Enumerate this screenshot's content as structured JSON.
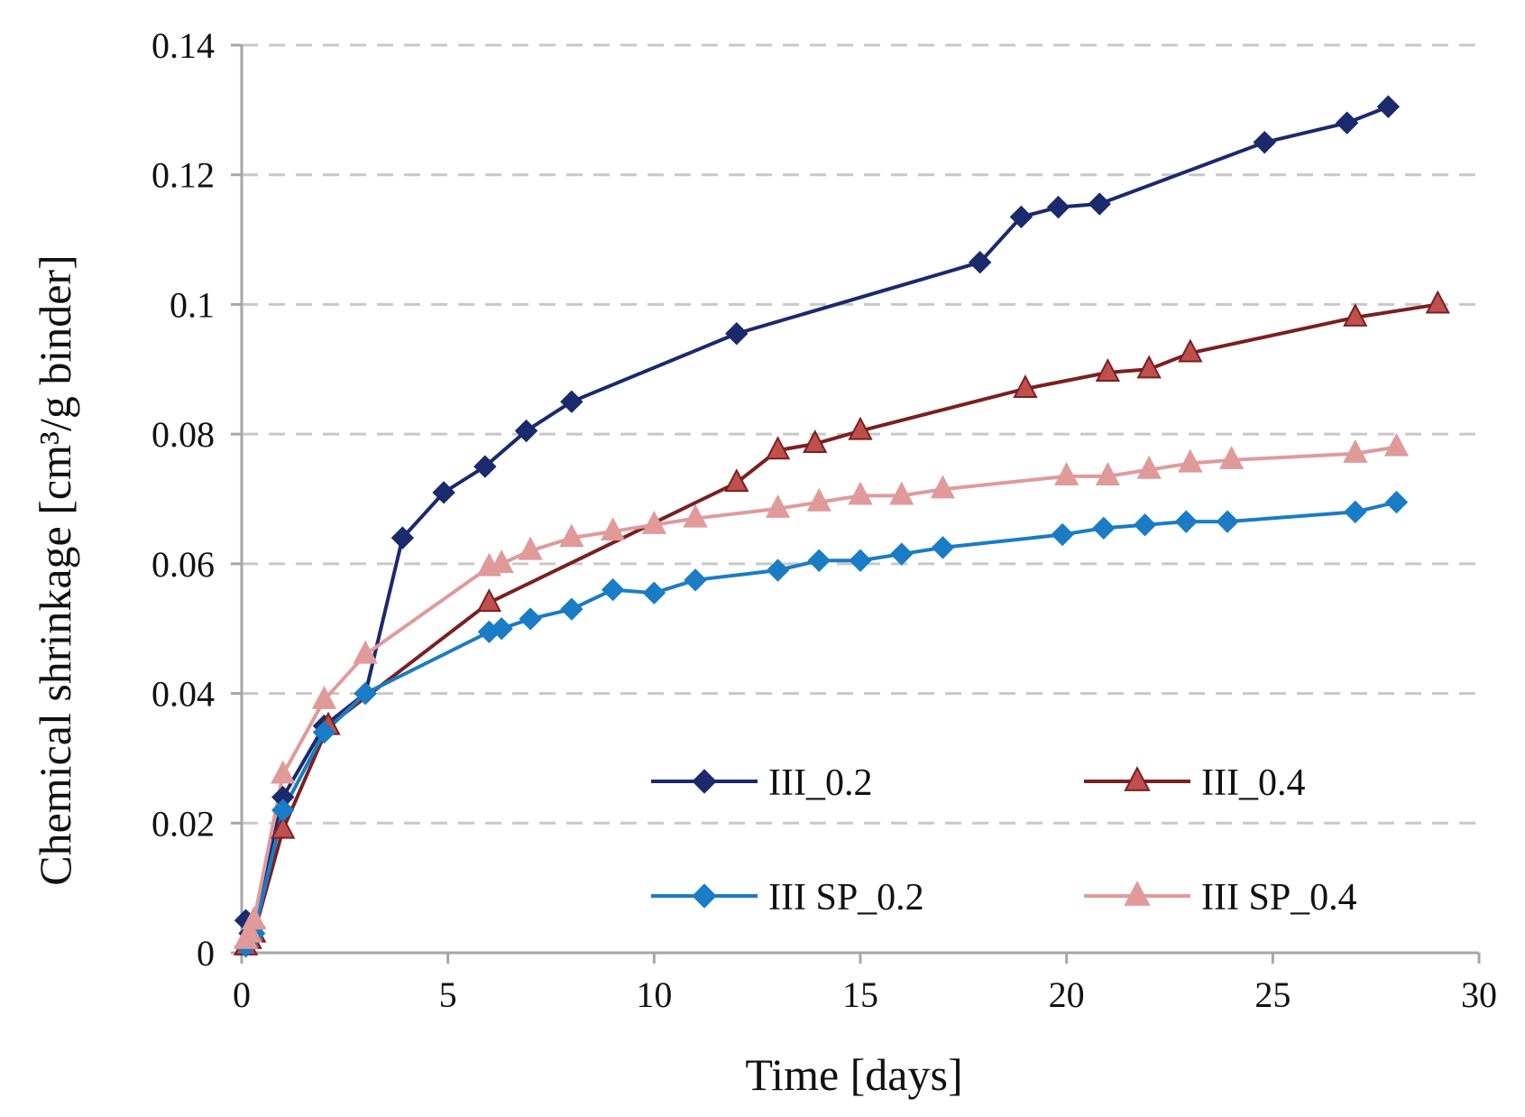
{
  "chart_data": {
    "type": "line",
    "title": "",
    "xlabel": "Time [days]",
    "ylabel": "Chemical shrinkage [cm³/g binder]",
    "xlim": [
      0,
      30
    ],
    "ylim": [
      0,
      0.14
    ],
    "x_ticks": [
      0,
      5,
      10,
      15,
      20,
      25,
      30
    ],
    "y_ticks": [
      0,
      0.02,
      0.04,
      0.06,
      0.08,
      0.1,
      0.12,
      0.14
    ],
    "x_tick_labels": [
      "0",
      "5",
      "10",
      "15",
      "20",
      "25",
      "30"
    ],
    "y_tick_labels": [
      "0",
      "0.02",
      "0.04",
      "0.06",
      "0.08",
      "0.1",
      "0.12",
      "0.14"
    ],
    "grid": "horizontal dashed",
    "legend": "inside bottom-right",
    "series": [
      {
        "name": "III_0.2",
        "color": "#1a2a6c",
        "marker": "diamond",
        "x": [
          0.1,
          0.2,
          0.3,
          1,
          2,
          3,
          3.9,
          4.9,
          5.9,
          6.9,
          8,
          12,
          17.9,
          18.9,
          19.8,
          20.8,
          24.8,
          26.8,
          27.8
        ],
        "y": [
          0.005,
          0.003,
          0.004,
          0.024,
          0.035,
          0.04,
          0.064,
          0.071,
          0.075,
          0.0805,
          0.085,
          0.0955,
          0.1065,
          0.1135,
          0.115,
          0.1155,
          0.125,
          0.128,
          0.1305
        ]
      },
      {
        "name": "III_0.4",
        "color": "#7a2020",
        "marker": "triangle",
        "x": [
          0.1,
          0.2,
          0.3,
          1,
          2.1,
          6,
          12,
          13,
          13.9,
          15,
          19,
          21,
          22,
          23,
          27,
          29
        ],
        "y": [
          0.001,
          0.002,
          0.003,
          0.019,
          0.035,
          0.054,
          0.0725,
          0.0775,
          0.0785,
          0.0805,
          0.087,
          0.0895,
          0.09,
          0.0925,
          0.098,
          0.1
        ]
      },
      {
        "name": "III SP_0.2",
        "color": "#1a7cc4",
        "marker": "diamond",
        "x": [
          0.1,
          0.2,
          0.3,
          1,
          2,
          3,
          6,
          6.3,
          7,
          8,
          9,
          10,
          11,
          13,
          14,
          15,
          16,
          17,
          19.9,
          20.9,
          21.9,
          22.9,
          23.9,
          27,
          28
        ],
        "y": [
          0.001,
          0.002,
          0.003,
          0.022,
          0.034,
          0.04,
          0.0495,
          0.05,
          0.0515,
          0.053,
          0.056,
          0.0555,
          0.0575,
          0.059,
          0.0605,
          0.0605,
          0.0615,
          0.0625,
          0.0645,
          0.0655,
          0.066,
          0.0665,
          0.0665,
          0.068,
          0.0695
        ]
      },
      {
        "name": "III SP_0.4",
        "color": "#e09a9a",
        "marker": "triangle",
        "x": [
          0.1,
          0.2,
          0.3,
          1,
          2,
          3,
          6,
          6.3,
          7,
          8,
          9,
          10,
          11,
          13,
          14,
          15,
          16,
          17,
          20,
          21,
          22,
          23,
          24,
          27,
          28
        ],
        "y": [
          0.002,
          0.003,
          0.005,
          0.0275,
          0.039,
          0.046,
          0.0595,
          0.06,
          0.062,
          0.064,
          0.065,
          0.066,
          0.067,
          0.0685,
          0.0695,
          0.0705,
          0.0705,
          0.0715,
          0.0735,
          0.0735,
          0.0745,
          0.0755,
          0.076,
          0.077,
          0.078
        ]
      }
    ]
  }
}
